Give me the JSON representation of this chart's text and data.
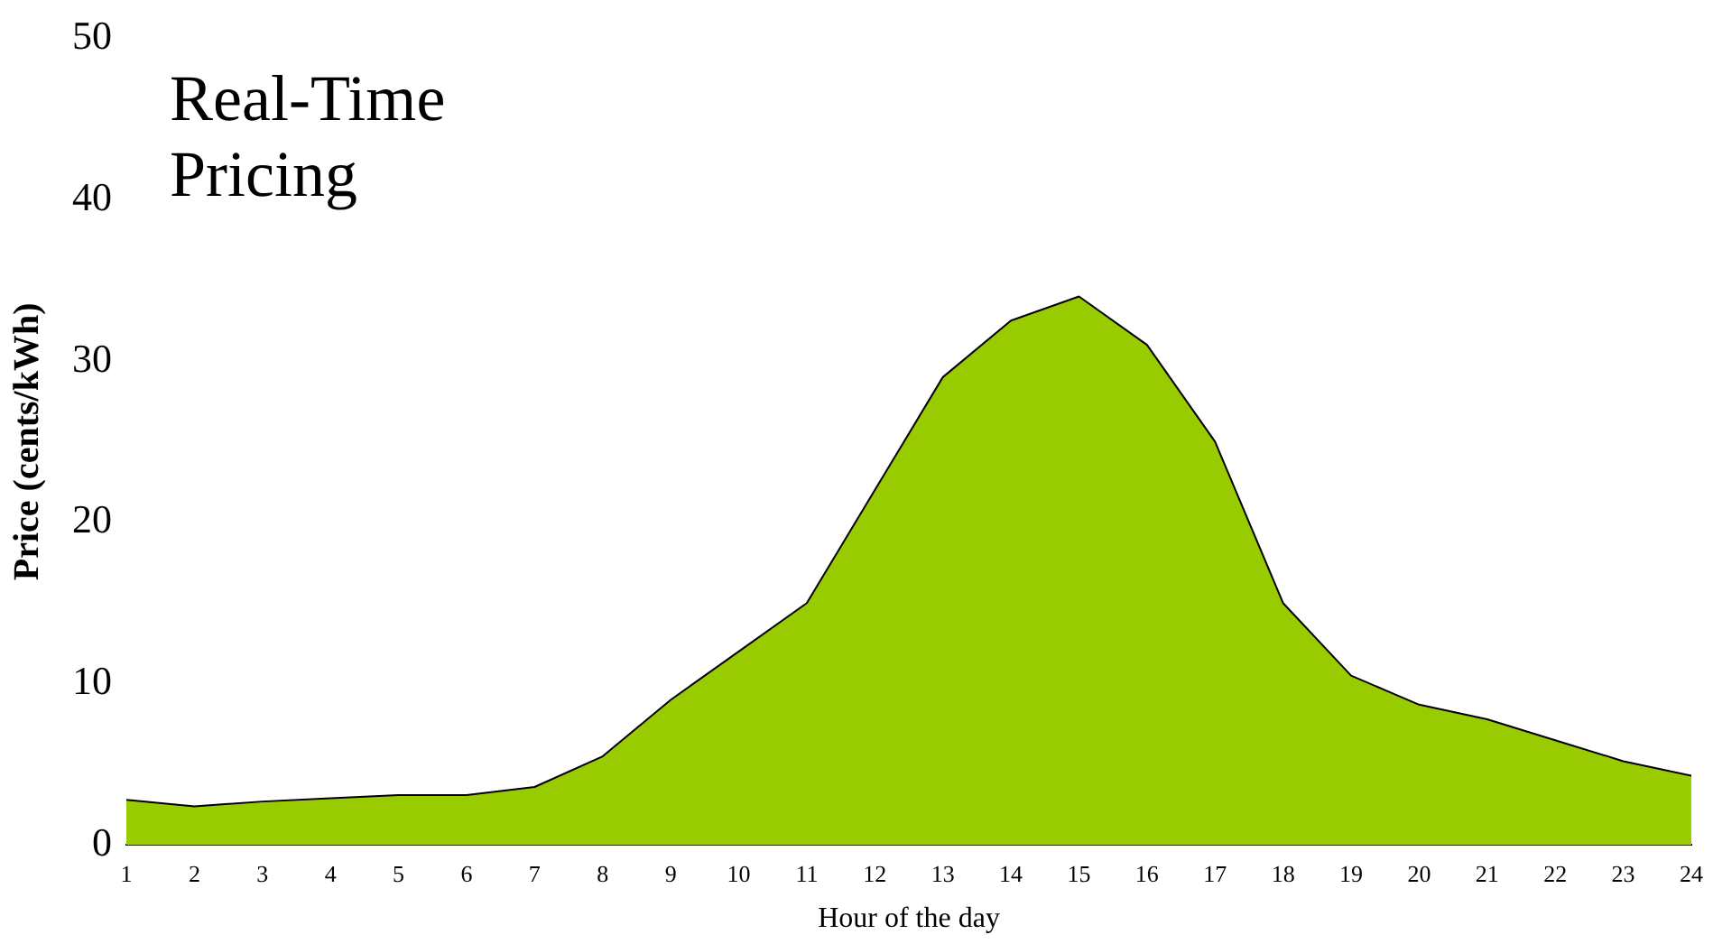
{
  "chart_data": {
    "type": "area",
    "title": "Real-Time Pricing",
    "xlabel": "Hour of the day",
    "ylabel": "Price (cents/kWh)",
    "x": [
      1,
      2,
      3,
      4,
      5,
      6,
      7,
      8,
      9,
      10,
      11,
      12,
      13,
      14,
      15,
      16,
      17,
      18,
      19,
      20,
      21,
      22,
      23,
      24
    ],
    "series": [
      {
        "color": "#99cc00",
        "values": [
          2.8,
          2.4,
          2.7,
          2.9,
          3.1,
          3.1,
          3.6,
          5.5,
          9,
          12,
          15,
          22,
          29,
          32.5,
          34,
          31,
          25,
          15,
          10.5,
          8.7,
          7.8,
          6.5,
          5.2,
          4.3
        ]
      }
    ],
    "xlim": [
      1,
      24
    ],
    "xticks": [
      1,
      2,
      3,
      4,
      5,
      6,
      7,
      8,
      9,
      10,
      11,
      12,
      13,
      14,
      15,
      16,
      17,
      18,
      19,
      20,
      21,
      22,
      23,
      24
    ],
    "ylim": [
      0,
      50
    ],
    "yticks": [
      0,
      10,
      20,
      30,
      40,
      50
    ],
    "grid": false,
    "legend": false
  }
}
